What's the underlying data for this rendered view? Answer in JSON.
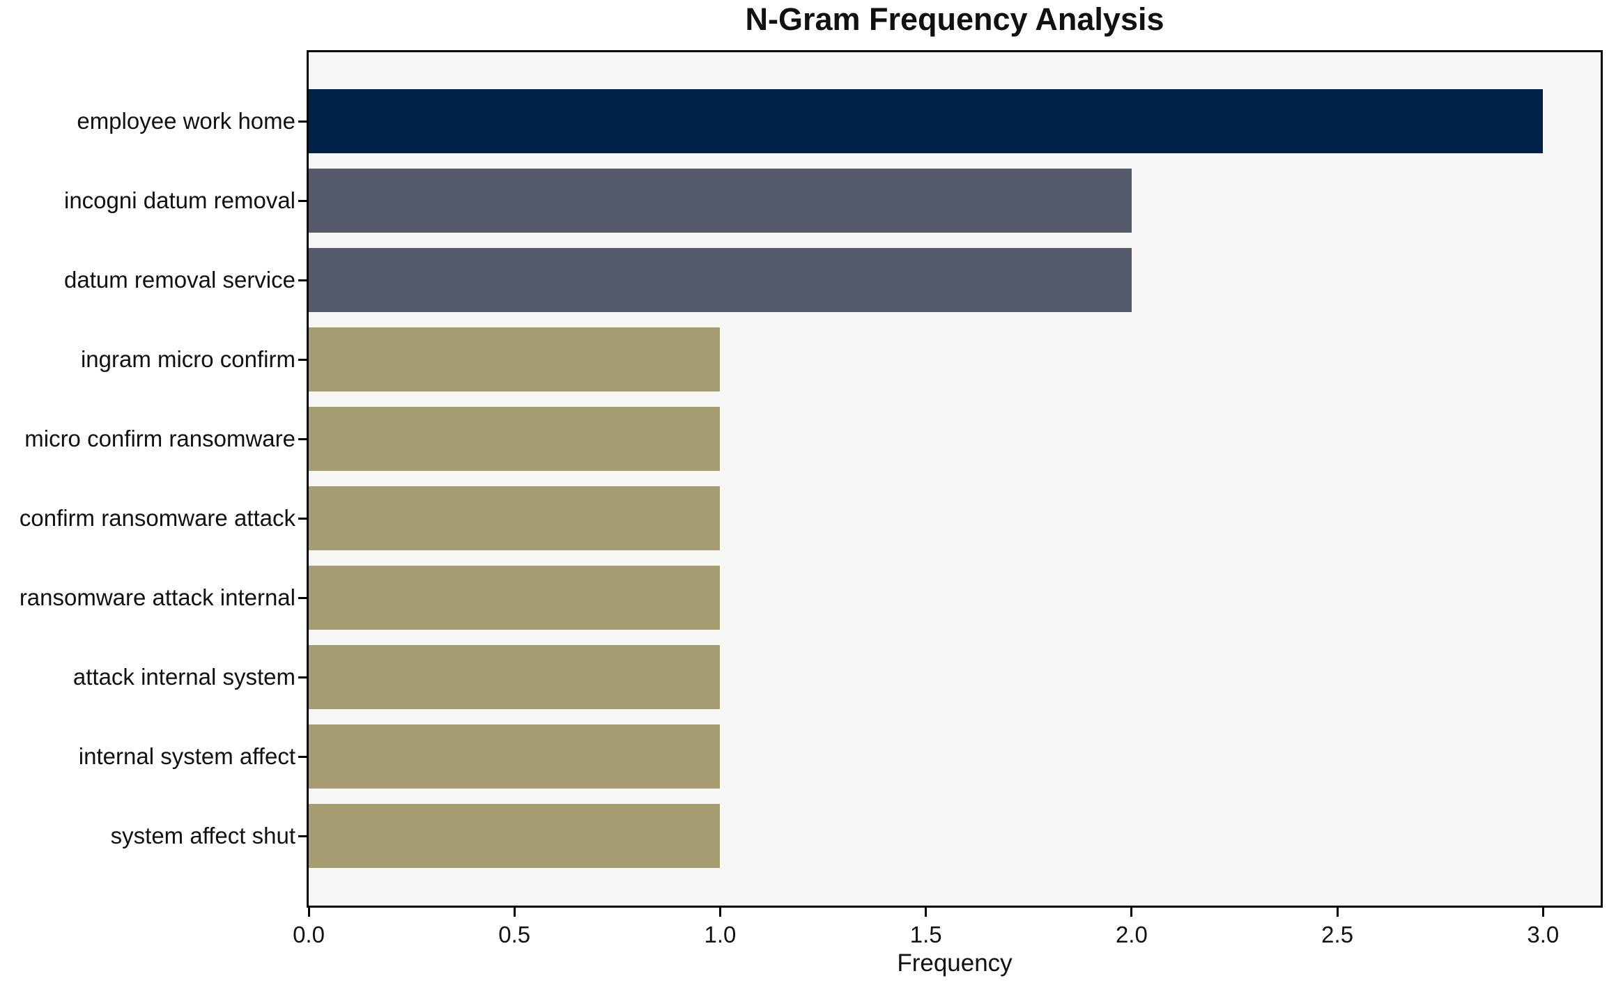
{
  "chart_data": {
    "type": "bar",
    "orientation": "horizontal",
    "title": "N-Gram Frequency Analysis",
    "xlabel": "Frequency",
    "ylabel": "",
    "categories": [
      "employee work home",
      "incogni datum removal",
      "datum removal service",
      "ingram micro confirm",
      "micro confirm ransomware",
      "confirm ransomware attack",
      "ransomware attack internal",
      "attack internal system",
      "internal system affect",
      "system affect shut"
    ],
    "values": [
      3,
      2,
      2,
      1,
      1,
      1,
      1,
      1,
      1,
      1
    ],
    "bar_colors": [
      "#022349",
      "#565b6b",
      "#565b6b",
      "#a69c72",
      "#a69c72",
      "#a69c72",
      "#a69c72",
      "#a69c72",
      "#a69c72",
      "#a69c72"
    ],
    "xticks": [
      0.0,
      0.5,
      1.0,
      1.5,
      2.0,
      2.5,
      3.0
    ],
    "xtick_labels": [
      "0.0",
      "0.5",
      "1.0",
      "1.5",
      "2.0",
      "2.5",
      "3.0"
    ],
    "xlim": [
      0,
      3.14
    ],
    "grid": false,
    "legend": "none",
    "plot_background": "#f7f7f5",
    "figure_background": "#ffffff",
    "spine_color": "#000000"
  }
}
